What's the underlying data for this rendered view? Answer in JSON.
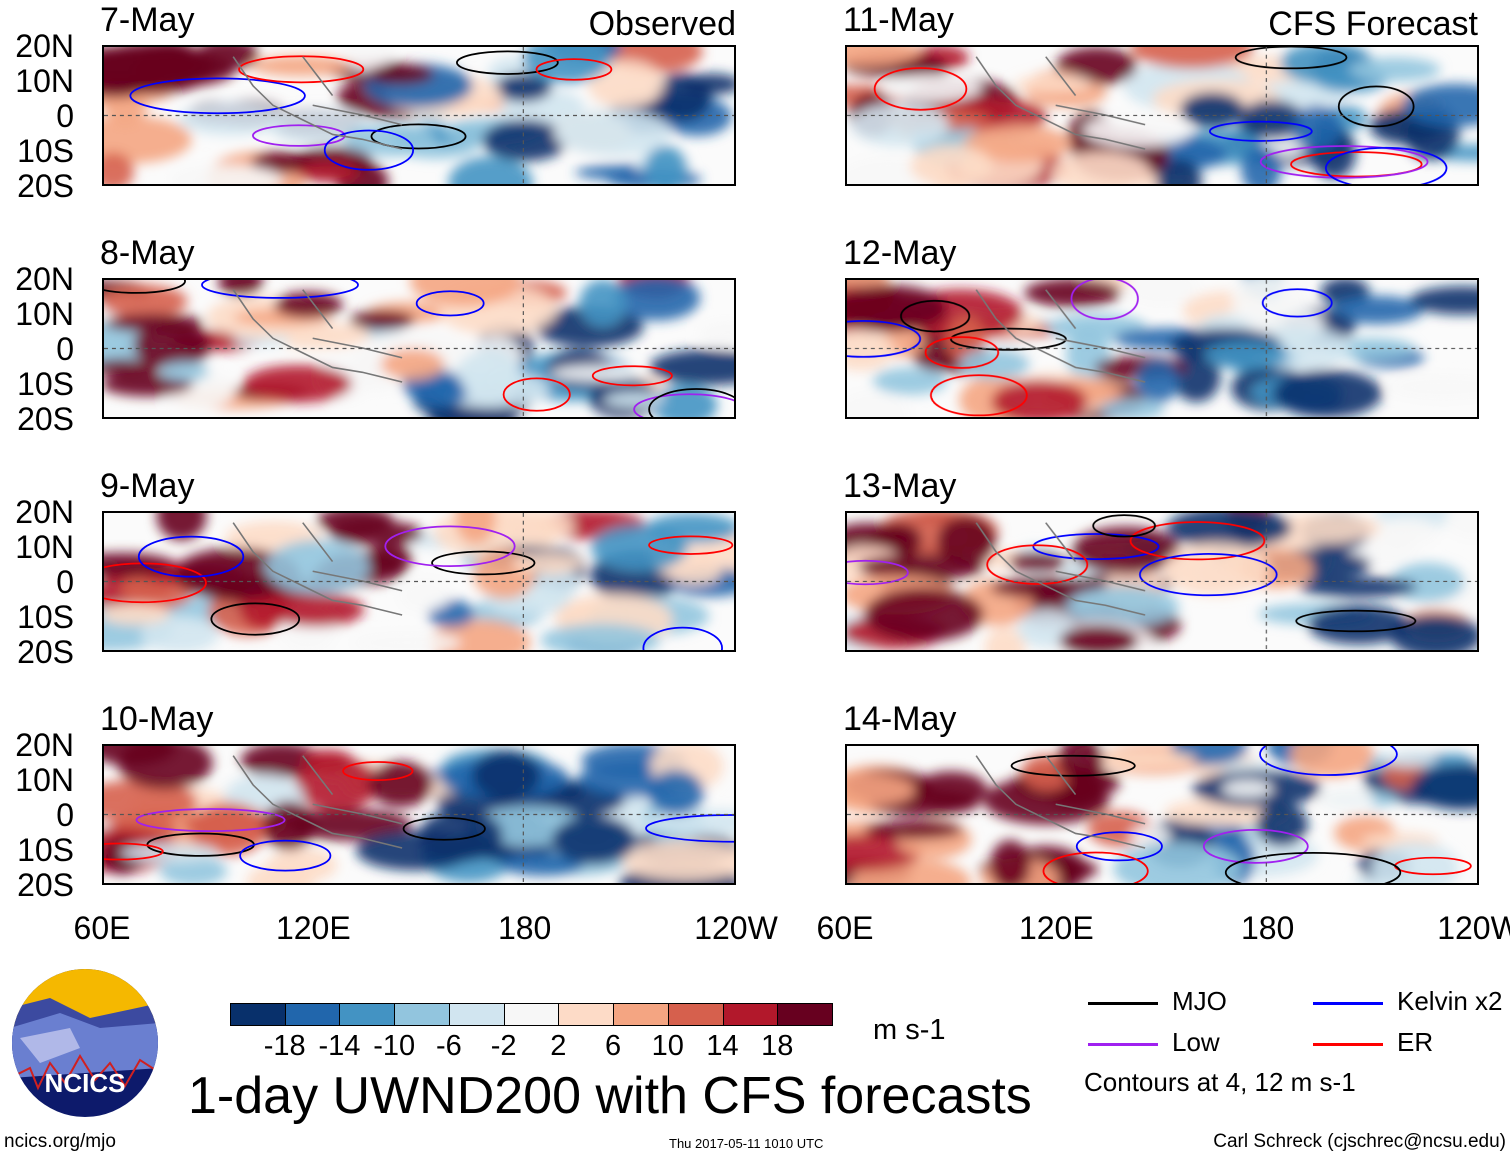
{
  "labels": {
    "observed": "Observed",
    "forecast": "CFS Forecast"
  },
  "panels": [
    {
      "date": "7-May",
      "kind": "observed"
    },
    {
      "date": "8-May",
      "kind": "observed"
    },
    {
      "date": "9-May",
      "kind": "observed"
    },
    {
      "date": "10-May",
      "kind": "observed"
    },
    {
      "date": "11-May",
      "kind": "forecast"
    },
    {
      "date": "12-May",
      "kind": "forecast"
    },
    {
      "date": "13-May",
      "kind": "forecast"
    },
    {
      "date": "14-May",
      "kind": "forecast"
    }
  ],
  "lat_ticks": [
    "20N",
    "10N",
    "0",
    "10S",
    "20S"
  ],
  "lon_ticks": [
    "60E",
    "120E",
    "180",
    "120W"
  ],
  "colorbar": {
    "colors": [
      "#08306b",
      "#2166ac",
      "#4393c3",
      "#92c5de",
      "#d1e5f0",
      "#f7f7f7",
      "#fddbc7",
      "#f4a582",
      "#d6604d",
      "#b2182b",
      "#67001f"
    ],
    "labels": [
      "-18",
      "-14",
      "-10",
      "-6",
      "-2",
      "2",
      "6",
      "10",
      "14",
      "18"
    ],
    "units": "m s-1"
  },
  "legend": {
    "items": [
      {
        "label": "MJO",
        "color": "#000000"
      },
      {
        "label": "Kelvin x2",
        "color": "#0000ff"
      },
      {
        "label": "Low",
        "color": "#a020f0"
      },
      {
        "label": "ER",
        "color": "#ff0000"
      }
    ],
    "note": "Contours at 4, 12 m s-1"
  },
  "title": "1-day UWND200 with CFS forecasts",
  "logo_text": "NCICS",
  "footer": {
    "left": "ncics.org/mjo",
    "center": "Thu 2017-05-11 1010 UTC",
    "right": "Carl Schreck (cjschrec@ncsu.edu)"
  },
  "chart_data": {
    "type": "heatmap",
    "title": "1-day UWND200 with CFS forecasts",
    "variable": "200-hPa zonal wind anomaly",
    "units": "m s-1",
    "xlim": [
      "60E",
      "120W"
    ],
    "ylim": [
      "20S",
      "20N"
    ],
    "contour_levels": [
      4,
      12
    ],
    "contour_series": [
      "MJO",
      "Kelvin x2",
      "Low",
      "ER"
    ],
    "color_levels": [
      -18,
      -14,
      -10,
      -6,
      -2,
      2,
      6,
      10,
      14,
      18
    ],
    "dates_observed": [
      "7-May",
      "8-May",
      "9-May",
      "10-May"
    ],
    "dates_forecast": [
      "11-May",
      "12-May",
      "13-May",
      "14-May"
    ]
  }
}
